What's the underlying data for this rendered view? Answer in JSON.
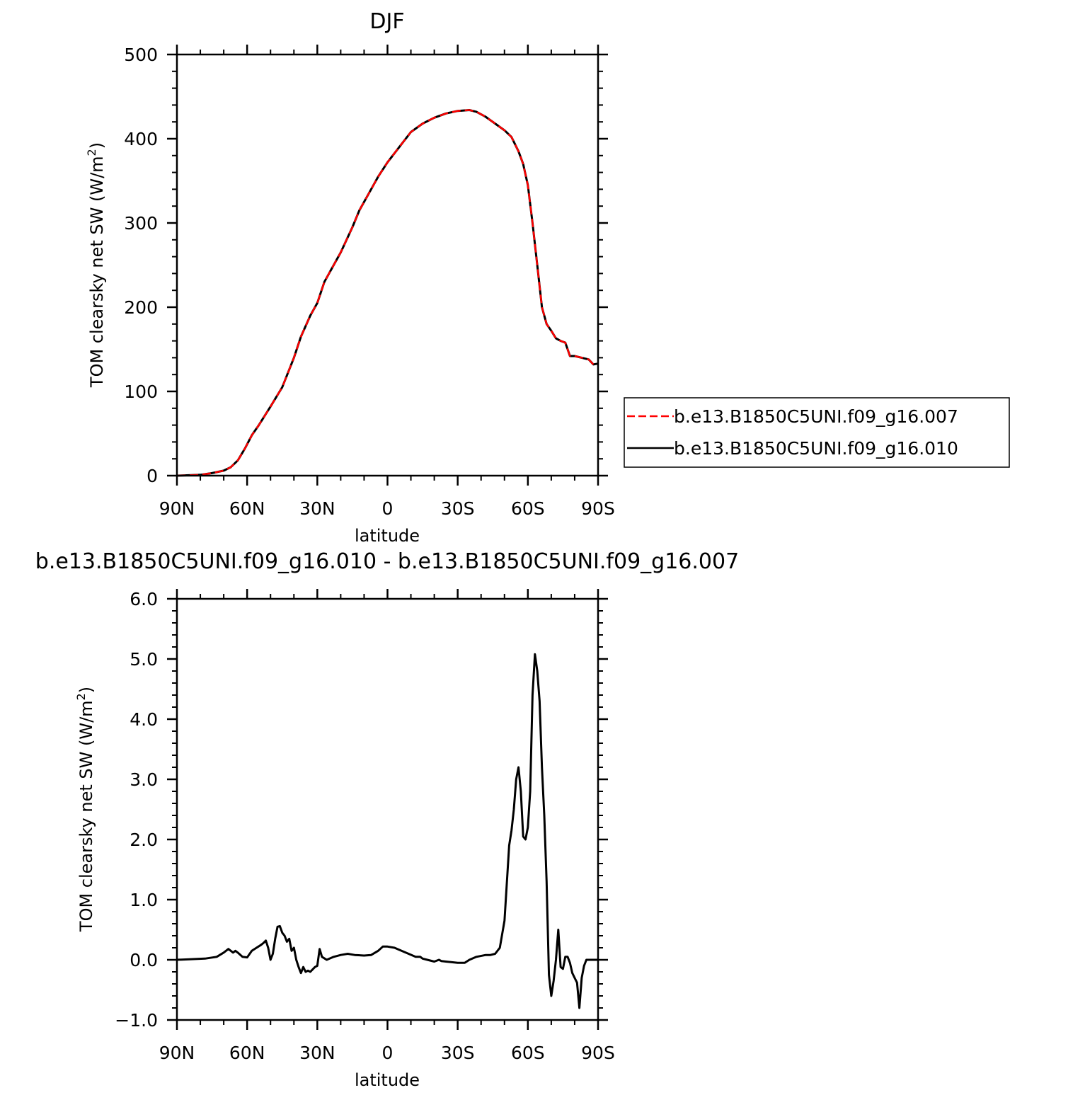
{
  "chart_data": [
    {
      "type": "line",
      "title": "DJF",
      "xlabel": "latitude",
      "ylabel": "TOM clearsky net SW (W/m²)",
      "ylabel_main": "TOM clearsky net SW (W/m",
      "ylabel_sup": "2",
      "ylabel_close": ")",
      "xlim": [
        90,
        -90
      ],
      "ylim": [
        0,
        500
      ],
      "xticks": [
        {
          "value": 90,
          "label": "90N"
        },
        {
          "value": 60,
          "label": "60N"
        },
        {
          "value": 30,
          "label": "30N"
        },
        {
          "value": 0,
          "label": "0"
        },
        {
          "value": -30,
          "label": "30S"
        },
        {
          "value": -60,
          "label": "60S"
        },
        {
          "value": -90,
          "label": "90S"
        }
      ],
      "yticks": [
        {
          "value": 0,
          "label": "0"
        },
        {
          "value": 100,
          "label": "100"
        },
        {
          "value": 200,
          "label": "200"
        },
        {
          "value": 300,
          "label": "300"
        },
        {
          "value": 400,
          "label": "400"
        },
        {
          "value": 500,
          "label": "500"
        }
      ],
      "grid": false,
      "legend_placement": "right",
      "series": [
        {
          "name": "b.e13.B1850C5UNI.f09_g16.010",
          "color": "#000000",
          "style": "solid",
          "x": [
            90,
            80,
            75,
            70,
            67,
            64,
            61,
            58,
            55,
            50,
            45,
            40,
            37,
            33,
            30,
            27,
            24,
            20,
            15,
            12,
            8,
            4,
            0,
            -5,
            -10,
            -15,
            -20,
            -25,
            -30,
            -35,
            -38,
            -42,
            -46,
            -50,
            -53,
            -56,
            -58,
            -60,
            -62,
            -64,
            -66,
            -68,
            -70,
            -72,
            -74,
            -76,
            -78,
            -80,
            -83,
            -86,
            -88,
            -90
          ],
          "y": [
            0,
            1,
            3,
            6,
            10,
            18,
            32,
            48,
            60,
            82,
            105,
            140,
            165,
            190,
            205,
            230,
            245,
            265,
            295,
            315,
            335,
            355,
            372,
            390,
            408,
            418,
            425,
            430,
            433,
            434,
            432,
            426,
            418,
            410,
            402,
            385,
            370,
            345,
            300,
            250,
            200,
            180,
            172,
            163,
            160,
            158,
            142,
            142,
            140,
            138,
            132,
            133
          ]
        },
        {
          "name": "b.e13.B1850C5UNI.f09_g16.007",
          "color": "#ff0000",
          "style": "dashed",
          "x": [
            90,
            80,
            75,
            70,
            67,
            64,
            61,
            58,
            55,
            50,
            45,
            40,
            37,
            33,
            30,
            27,
            24,
            20,
            15,
            12,
            8,
            4,
            0,
            -5,
            -10,
            -15,
            -20,
            -25,
            -30,
            -35,
            -38,
            -42,
            -46,
            -50,
            -53,
            -56,
            -58,
            -60,
            -62,
            -64,
            -66,
            -68,
            -70,
            -72,
            -74,
            -76,
            -78,
            -80,
            -83,
            -86,
            -88,
            -90
          ],
          "y": [
            0,
            1,
            3,
            6,
            10,
            18,
            32,
            48,
            60,
            82,
            105,
            140,
            165,
            190,
            205,
            230,
            245,
            265,
            295,
            315,
            335,
            355,
            372,
            390,
            408,
            418,
            425,
            430,
            433,
            434,
            432,
            426,
            418,
            410,
            402,
            385,
            370,
            345,
            300,
            250,
            200,
            180,
            172,
            163,
            160,
            158,
            142,
            142,
            140,
            138,
            132,
            133
          ]
        }
      ],
      "legend": [
        {
          "name": "b.e13.B1850C5UNI.f09_g16.007",
          "color": "#ff0000",
          "style": "dashed"
        },
        {
          "name": "b.e13.B1850C5UNI.f09_g16.010",
          "color": "#000000",
          "style": "solid"
        }
      ]
    },
    {
      "type": "line",
      "title": "b.e13.B1850C5UNI.f09_g16.010 - b.e13.B1850C5UNI.f09_g16.007",
      "xlabel": "latitude",
      "ylabel": "TOM clearsky net SW (W/m²)",
      "ylabel_main": "TOM clearsky net SW (W/m",
      "ylabel_sup": "2",
      "ylabel_close": ")",
      "xlim": [
        90,
        -90
      ],
      "ylim": [
        -1,
        6
      ],
      "xticks": [
        {
          "value": 90,
          "label": "90N"
        },
        {
          "value": 60,
          "label": "60N"
        },
        {
          "value": 30,
          "label": "30N"
        },
        {
          "value": 0,
          "label": "0"
        },
        {
          "value": -30,
          "label": "30S"
        },
        {
          "value": -60,
          "label": "60S"
        },
        {
          "value": -90,
          "label": "90S"
        }
      ],
      "yticks": [
        {
          "value": -1,
          "label": "−1.0"
        },
        {
          "value": 0,
          "label": "0.0"
        },
        {
          "value": 1,
          "label": "1.0"
        },
        {
          "value": 2,
          "label": "2.0"
        },
        {
          "value": 3,
          "label": "3.0"
        },
        {
          "value": 4,
          "label": "4.0"
        },
        {
          "value": 5,
          "label": "5.0"
        },
        {
          "value": 6,
          "label": "6.0"
        }
      ],
      "grid": false,
      "series": [
        {
          "color": "#000000",
          "style": "solid",
          "x": [
            90,
            78,
            73,
            70,
            68,
            66,
            65,
            64,
            62,
            60,
            58,
            56,
            54,
            53,
            52,
            51,
            50,
            49,
            48,
            47,
            46,
            45,
            44,
            43,
            42,
            41,
            40,
            39,
            38,
            37,
            36,
            35,
            34,
            33,
            31,
            30,
            29,
            28,
            26,
            23,
            20,
            17,
            14,
            10,
            7,
            4,
            2,
            0,
            -3,
            -6,
            -9,
            -12,
            -14,
            -15,
            -17,
            -20,
            -22,
            -23,
            -25,
            -30,
            -33,
            -35,
            -38,
            -42,
            -44,
            -46,
            -48,
            -50,
            -52,
            -53,
            -54,
            -55,
            -56,
            -57,
            -58,
            -59,
            -60,
            -61,
            -62,
            -63,
            -64,
            -65,
            -66,
            -67,
            -68,
            -69,
            -70,
            -71,
            -72,
            -73,
            -74,
            -75,
            -76,
            -77,
            -78,
            -79,
            -80,
            -81,
            -82,
            -83,
            -84,
            -85,
            -86,
            -87,
            -88,
            -89,
            -90
          ],
          "y": [
            0,
            0.02,
            0.05,
            0.12,
            0.18,
            0.12,
            0.15,
            0.12,
            0.05,
            0.04,
            0.15,
            0.2,
            0.25,
            0.28,
            0.32,
            0.2,
            0.0,
            0.1,
            0.35,
            0.55,
            0.56,
            0.45,
            0.4,
            0.3,
            0.35,
            0.15,
            0.2,
            0.0,
            -0.12,
            -0.22,
            -0.12,
            -0.2,
            -0.18,
            -0.2,
            -0.12,
            -0.1,
            0.18,
            0.05,
            0.0,
            0.05,
            0.08,
            0.1,
            0.08,
            0.07,
            0.08,
            0.15,
            0.22,
            0.22,
            0.2,
            0.15,
            0.1,
            0.05,
            0.05,
            0.02,
            0.0,
            -0.03,
            0.0,
            -0.02,
            -0.03,
            -0.05,
            -0.05,
            0.0,
            0.05,
            0.08,
            0.08,
            0.1,
            0.2,
            0.65,
            1.9,
            2.15,
            2.5,
            3.0,
            3.2,
            2.8,
            2.05,
            2.0,
            2.2,
            2.8,
            4.4,
            5.08,
            4.8,
            4.3,
            3.2,
            2.4,
            1.3,
            -0.25,
            -0.6,
            -0.35,
            0.0,
            0.5,
            -0.12,
            -0.15,
            0.05,
            0.05,
            -0.05,
            -0.22,
            -0.3,
            -0.38,
            -0.8,
            -0.3,
            -0.1,
            0.0,
            0.0,
            0.0,
            0.0,
            0.0,
            0.0
          ]
        }
      ]
    }
  ]
}
